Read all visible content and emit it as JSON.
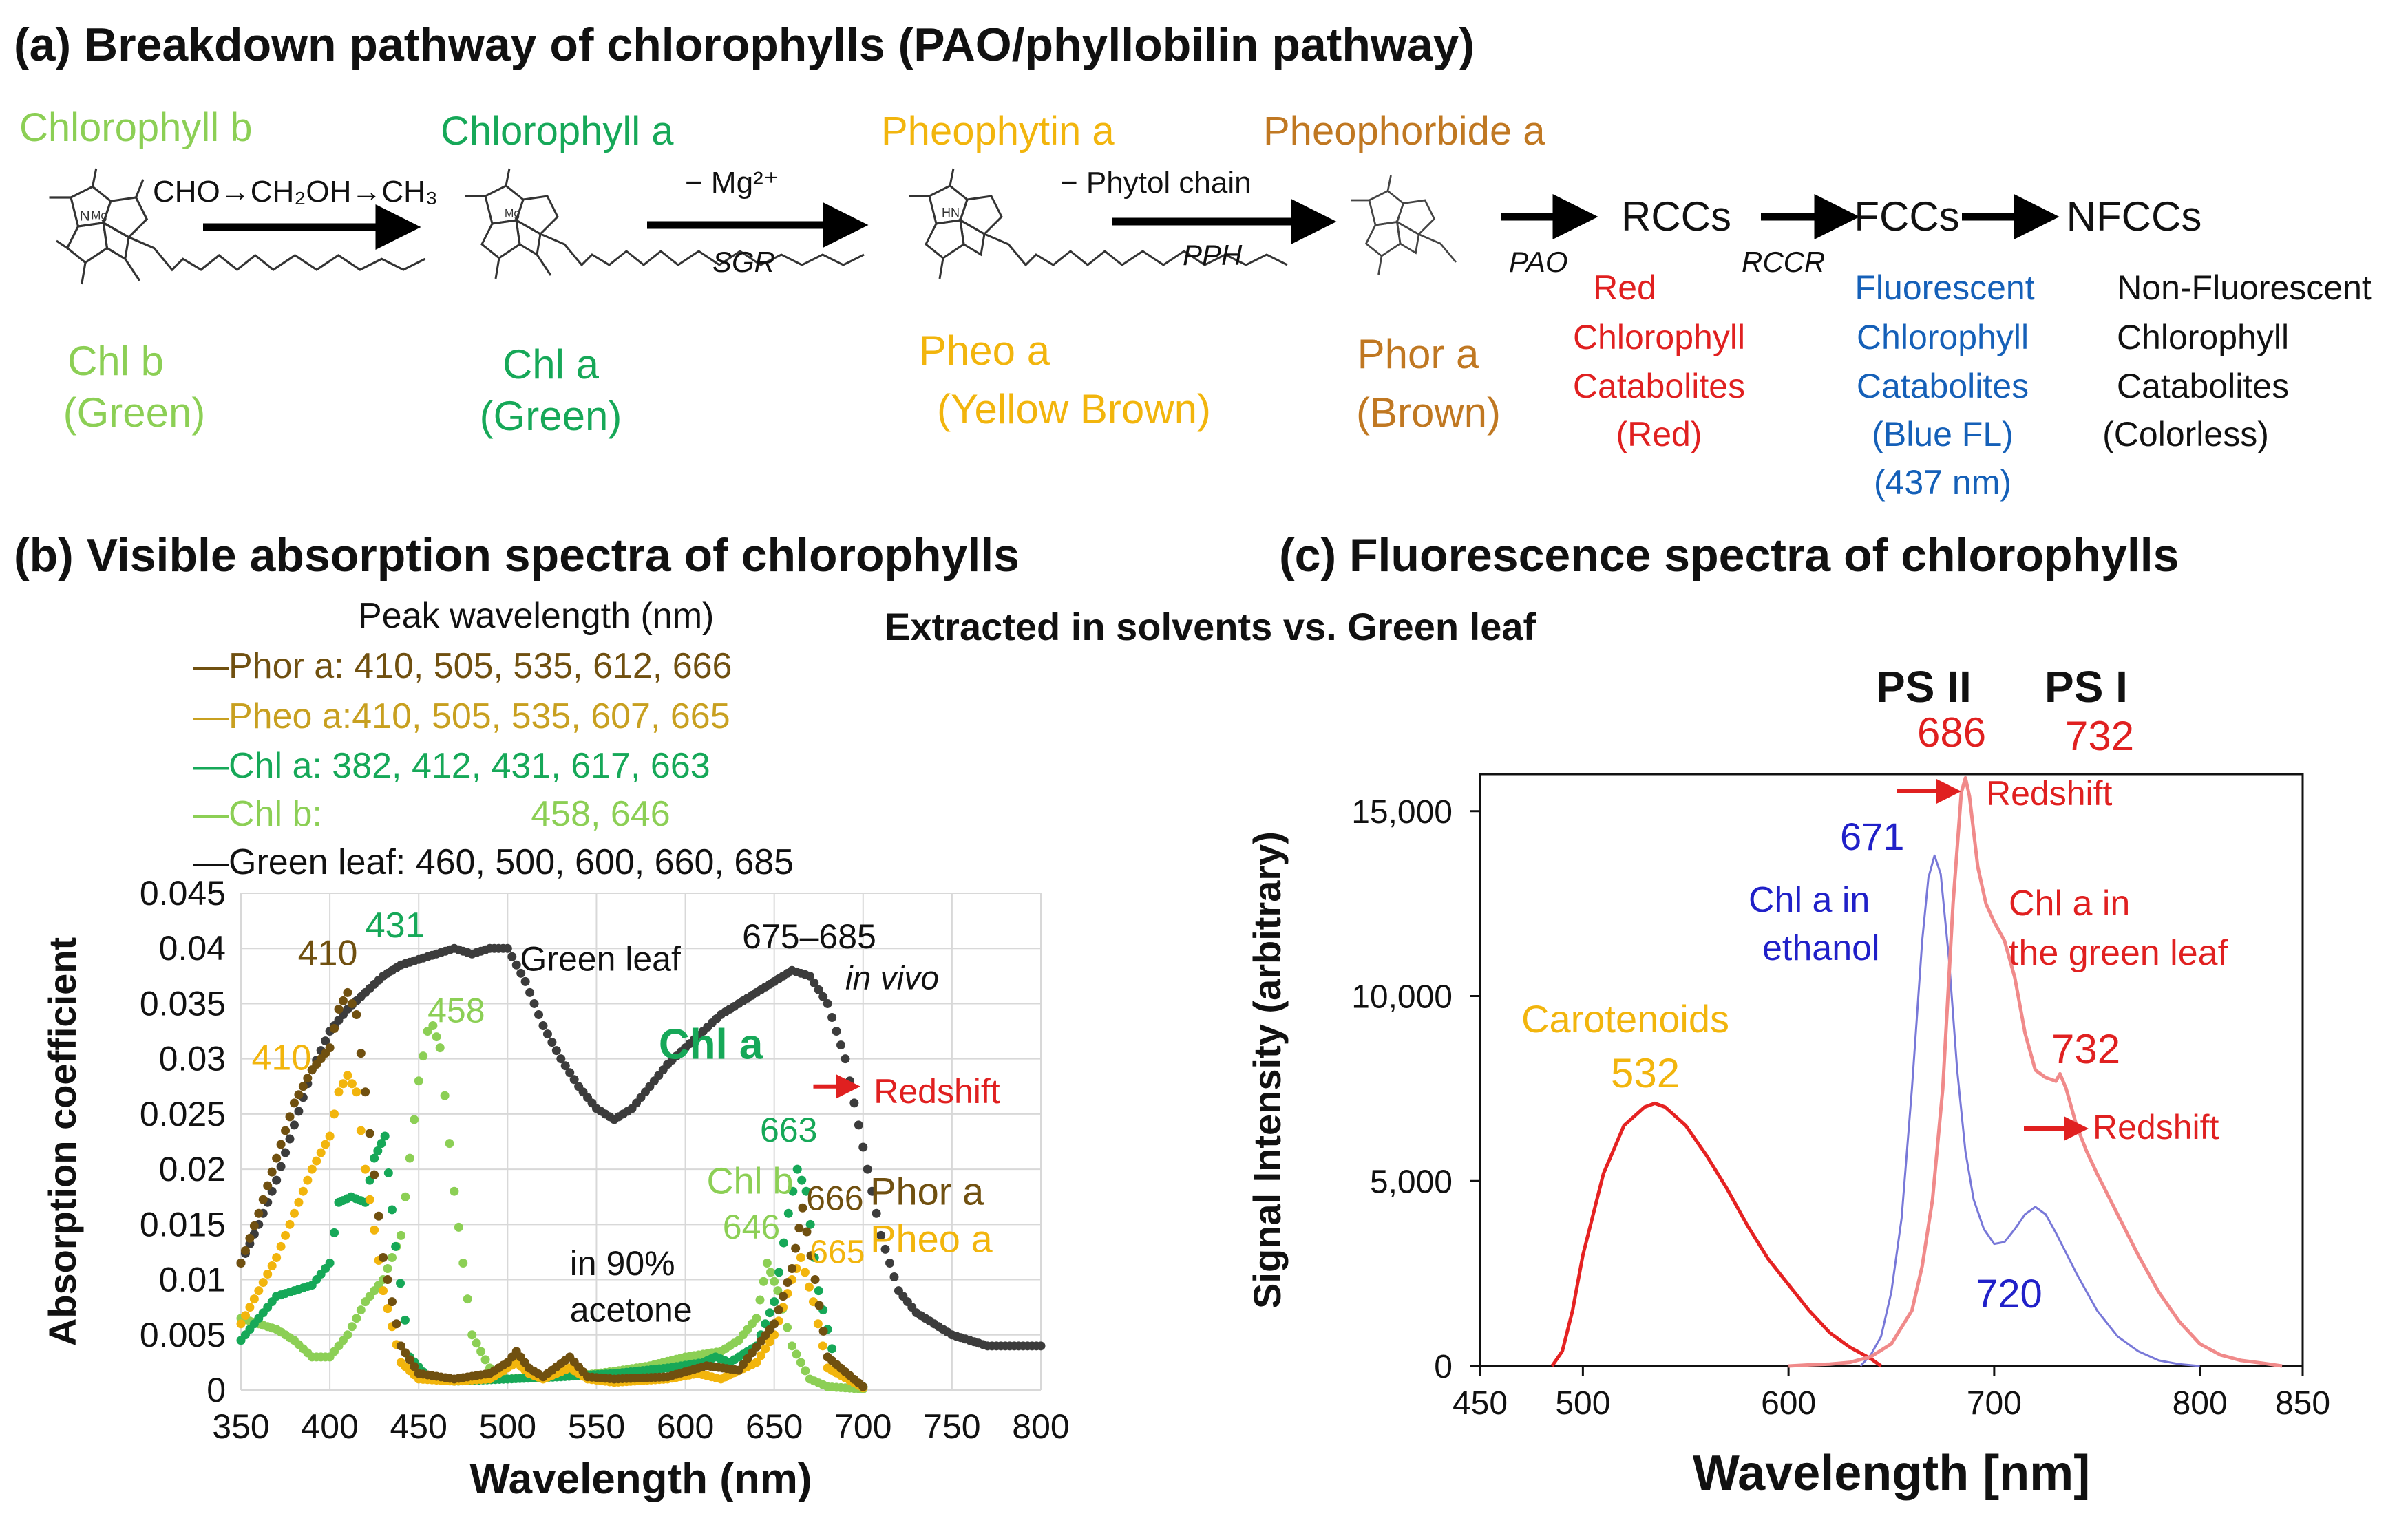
{
  "colors": {
    "chlb": "#8ccf55",
    "chla": "#16a858",
    "pheo": "#f2b50d",
    "phor": "#705010",
    "phor_label": "#c07822",
    "leaf": "#3c3c3c",
    "red": "#e02020",
    "blue": "#1560b8",
    "fluor_blue": "#2020c8",
    "leaf_fluor": "#f08080"
  },
  "panel_a": {
    "title": "(a) Breakdown pathway of chlorophylls (PAO/phyllobilin pathway)",
    "compounds": [
      {
        "name": "Chlorophyll b",
        "abbr": "Chl b",
        "color_name": "(Green)",
        "color": "#8ccf55"
      },
      {
        "name": "Chlorophyll a",
        "abbr": "Chl a",
        "color_name": "(Green)",
        "color": "#16a858"
      },
      {
        "name": "Pheophytin a",
        "abbr": "Pheo a",
        "color_name": "(Yellow Brown)",
        "color": "#f2b50d"
      },
      {
        "name": "Pheophorbide a",
        "abbr": "Phor a",
        "color_name": "(Brown)",
        "color": "#c07822"
      }
    ],
    "steps": [
      {
        "top_text": "CHO→CH₂OH→CH₃",
        "enzyme": ""
      },
      {
        "top_text": "− Mg²⁺",
        "enzyme": "SGR"
      },
      {
        "top_text": "− Phytol chain",
        "enzyme": "PPH"
      },
      {
        "top_text": "",
        "enzyme": "PAO"
      },
      {
        "top_text": "",
        "enzyme": "RCCR"
      }
    ],
    "catabolites": [
      {
        "abbr": "RCCs",
        "lines": [
          "Red",
          "Chlorophyll",
          "Catabolites",
          "(Red)"
        ],
        "color": "#e02020"
      },
      {
        "abbr": "FCCs",
        "lines": [
          "Fluorescent",
          "Chlorophyll",
          "Catabolites",
          "(Blue FL)",
          "(437 nm)"
        ],
        "color": "#1560b8"
      },
      {
        "abbr": "NFCCs",
        "lines": [
          "Non-Fluorescent",
          "Chlorophyll",
          "Catabolites",
          "(Colorless)"
        ],
        "color": "#111111"
      }
    ]
  },
  "panel_b": {
    "title": "(b) Visible absorption spectra of chlorophylls",
    "peak_header": "Peak wavelength (nm)",
    "legend": [
      {
        "text": "—Phor a: 410, 505, 535, 612, 666",
        "color": "#705010"
      },
      {
        "text": "—Pheo a:410, 505, 535, 607, 665",
        "color": "#c8a020"
      },
      {
        "text": "—Chl a: 382, 412, 431, 617, 663",
        "color": "#16a858"
      },
      {
        "text": "—Chl b:                     458, 646",
        "color": "#8ccf55"
      },
      {
        "text": "—Green leaf: 460, 500, 600, 660, 685",
        "color": "#111111"
      }
    ]
  },
  "shared_subtitle": "Extracted in solvents vs. Green leaf",
  "panel_c": {
    "title": "(c) Fluorescence spectra of chlorophylls",
    "ps2": "PS II",
    "ps1": "PS I",
    "ps2_peak": "686",
    "ps1_peak": "732"
  },
  "chart_data": [
    {
      "type": "scatter",
      "title": "Visible absorption spectra of chlorophylls",
      "xlabel": "Wavelength (nm)",
      "ylabel": "Absorption coefficient",
      "xlim": [
        350,
        800
      ],
      "ylim": [
        0,
        0.045
      ],
      "x_ticks": [
        "350",
        "400",
        "450",
        "500",
        "550",
        "600",
        "650",
        "700",
        "750",
        "800"
      ],
      "y_ticks": [
        "0",
        "0.005",
        "0.01",
        "0.015",
        "0.02",
        "0.025",
        "0.03",
        "0.035",
        "0.04",
        "0.045"
      ],
      "grid": true,
      "series": [
        {
          "name": "Green leaf",
          "color": "#3c3c3c",
          "x": [
            350,
            360,
            370,
            380,
            390,
            400,
            410,
            420,
            430,
            440,
            450,
            460,
            470,
            480,
            490,
            500,
            510,
            520,
            530,
            540,
            550,
            560,
            570,
            580,
            590,
            600,
            610,
            620,
            630,
            640,
            650,
            660,
            670,
            680,
            690,
            700,
            710,
            720,
            730,
            740,
            750,
            760,
            770,
            780,
            790,
            800
          ],
          "y": [
            0.0115,
            0.015,
            0.019,
            0.024,
            0.029,
            0.0325,
            0.0345,
            0.036,
            0.0375,
            0.0385,
            0.039,
            0.0395,
            0.04,
            0.0395,
            0.04,
            0.04,
            0.037,
            0.033,
            0.03,
            0.0275,
            0.0255,
            0.0245,
            0.0255,
            0.0275,
            0.0295,
            0.031,
            0.0325,
            0.034,
            0.035,
            0.036,
            0.037,
            0.038,
            0.0375,
            0.035,
            0.03,
            0.022,
            0.014,
            0.009,
            0.007,
            0.006,
            0.005,
            0.0045,
            0.004,
            0.004,
            0.004,
            0.004
          ]
        },
        {
          "name": "Chl b",
          "color": "#8ccf55",
          "x": [
            350,
            360,
            370,
            380,
            390,
            400,
            410,
            420,
            430,
            440,
            450,
            455,
            458,
            462,
            470,
            480,
            490,
            500,
            520,
            540,
            560,
            580,
            600,
            620,
            630,
            640,
            646,
            652,
            660,
            670,
            680,
            690,
            700
          ],
          "y": [
            0.0065,
            0.006,
            0.0055,
            0.0045,
            0.003,
            0.003,
            0.005,
            0.008,
            0.01,
            0.014,
            0.028,
            0.0325,
            0.033,
            0.031,
            0.018,
            0.005,
            0.002,
            0.001,
            0.0012,
            0.0013,
            0.0017,
            0.0022,
            0.003,
            0.0035,
            0.0045,
            0.0065,
            0.0115,
            0.009,
            0.004,
            0.001,
            0.0003,
            0.0002,
            0.0001
          ]
        },
        {
          "name": "Chl a",
          "color": "#16a858",
          "x": [
            350,
            360,
            370,
            380,
            390,
            400,
            405,
            412,
            420,
            425,
            431,
            437,
            445,
            455,
            470,
            500,
            530,
            560,
            590,
            610,
            617,
            625,
            640,
            650,
            658,
            663,
            668,
            675,
            685,
            700
          ],
          "y": [
            0.0045,
            0.0065,
            0.0085,
            0.009,
            0.0095,
            0.0115,
            0.017,
            0.0175,
            0.017,
            0.021,
            0.023,
            0.013,
            0.003,
            0.0012,
            0.0008,
            0.001,
            0.0012,
            0.0015,
            0.002,
            0.0025,
            0.003,
            0.0025,
            0.004,
            0.008,
            0.016,
            0.02,
            0.018,
            0.009,
            0.002,
            0.0003
          ]
        },
        {
          "name": "Pheo a",
          "color": "#f2b50d",
          "x": [
            350,
            360,
            370,
            380,
            390,
            400,
            405,
            410,
            415,
            420,
            430,
            440,
            450,
            470,
            490,
            500,
            505,
            512,
            520,
            535,
            545,
            560,
            590,
            607,
            620,
            640,
            650,
            660,
            665,
            672,
            680,
            700
          ],
          "y": [
            0.006,
            0.009,
            0.012,
            0.016,
            0.02,
            0.023,
            0.027,
            0.0285,
            0.027,
            0.02,
            0.009,
            0.0025,
            0.001,
            0.0008,
            0.001,
            0.002,
            0.0025,
            0.0015,
            0.001,
            0.002,
            0.001,
            0.0007,
            0.001,
            0.0015,
            0.001,
            0.0025,
            0.005,
            0.01,
            0.012,
            0.008,
            0.002,
            0.0002
          ]
        },
        {
          "name": "Phor a",
          "color": "#705010",
          "x": [
            350,
            360,
            370,
            380,
            390,
            400,
            405,
            410,
            415,
            420,
            430,
            440,
            450,
            470,
            490,
            500,
            505,
            512,
            520,
            535,
            545,
            560,
            590,
            612,
            630,
            650,
            660,
            666,
            673,
            680,
            700
          ],
          "y": [
            0.0115,
            0.016,
            0.021,
            0.026,
            0.029,
            0.031,
            0.0345,
            0.036,
            0.034,
            0.027,
            0.012,
            0.004,
            0.0015,
            0.001,
            0.0015,
            0.0025,
            0.0035,
            0.002,
            0.0012,
            0.003,
            0.0012,
            0.001,
            0.0012,
            0.0022,
            0.0018,
            0.006,
            0.011,
            0.0165,
            0.01,
            0.003,
            0.0003
          ]
        }
      ],
      "annotations": [
        "410",
        "431",
        "410",
        "458",
        "Green leaf",
        "675–685",
        "in vivo",
        "Chl a",
        "Redshift",
        "663",
        "Chl b",
        "646",
        "666",
        "665",
        "Phor a",
        "Pheo a",
        "in 90%",
        "acetone"
      ]
    },
    {
      "type": "line",
      "title": "Fluorescence spectra of chlorophylls",
      "xlabel": "Wavelength [nm]",
      "ylabel": "Signal Intensity (arbitrary)",
      "xlim": [
        450,
        850
      ],
      "ylim": [
        0,
        16000
      ],
      "x_ticks": [
        "450",
        "500",
        "600",
        "700",
        "800",
        "850"
      ],
      "y_ticks": [
        "0",
        "5,000",
        "10,000",
        "15,000"
      ],
      "grid": false,
      "series": [
        {
          "name": "Carotenoids",
          "color": "#e52222",
          "x": [
            485,
            490,
            495,
            500,
            510,
            520,
            530,
            535,
            540,
            550,
            560,
            570,
            580,
            590,
            600,
            610,
            620,
            630,
            640,
            645
          ],
          "y": [
            0,
            400,
            1500,
            3000,
            5200,
            6500,
            7000,
            7100,
            7000,
            6500,
            5700,
            4800,
            3800,
            2900,
            2200,
            1500,
            900,
            500,
            200,
            0
          ]
        },
        {
          "name": "Chl a in ethanol",
          "color": "#7878d8",
          "x": [
            635,
            640,
            645,
            650,
            655,
            660,
            665,
            668,
            671,
            674,
            678,
            682,
            686,
            690,
            695,
            700,
            705,
            710,
            715,
            720,
            725,
            730,
            740,
            750,
            760,
            770,
            780,
            790,
            800
          ],
          "y": [
            0,
            300,
            800,
            2000,
            4000,
            7500,
            11500,
            13200,
            13800,
            13300,
            11000,
            8000,
            5800,
            4500,
            3700,
            3300,
            3350,
            3700,
            4100,
            4300,
            4100,
            3600,
            2500,
            1500,
            800,
            400,
            150,
            50,
            0
          ]
        },
        {
          "name": "Chl a in the green leaf",
          "color": "#f08a8a",
          "x": [
            600,
            610,
            620,
            630,
            640,
            650,
            660,
            665,
            670,
            675,
            680,
            684,
            686,
            688,
            692,
            696,
            700,
            705,
            710,
            715,
            720,
            725,
            730,
            732,
            735,
            740,
            745,
            750,
            760,
            770,
            780,
            790,
            800,
            810,
            820,
            830,
            840
          ],
          "y": [
            0,
            30,
            50,
            100,
            250,
            600,
            1500,
            2700,
            4500,
            7500,
            12500,
            15500,
            15900,
            15400,
            13500,
            12500,
            12000,
            11500,
            10500,
            9000,
            8000,
            7800,
            7700,
            7900,
            7500,
            6500,
            5800,
            5200,
            4100,
            3000,
            2000,
            1200,
            600,
            300,
            150,
            80,
            0
          ]
        }
      ],
      "annotations": [
        "671",
        "Chl a in",
        "ethanol",
        "686",
        "Redshift",
        "Chl a in",
        "the green leaf",
        "732",
        "Redshift",
        "Carotenoids",
        "532",
        "720"
      ]
    }
  ]
}
